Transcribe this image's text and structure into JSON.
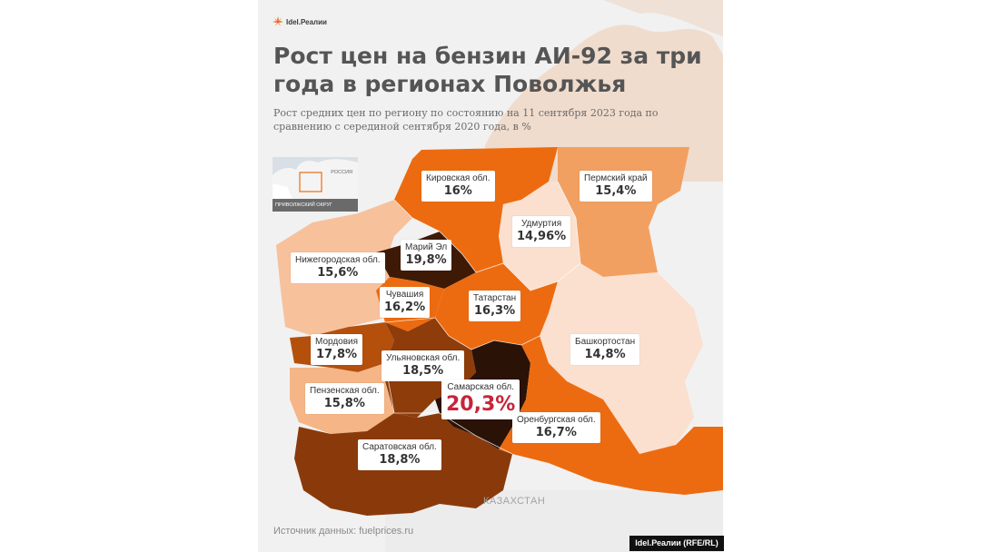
{
  "brand": {
    "logo_text": "Idel.Реалии"
  },
  "header": {
    "title": "Рост цен на бензин АИ-92 за три года в регионах Поволжья",
    "subtitle": "Рост средних цен по региону по состоянию на 11 сентября 2023 года по сравнению с серединой сентября 2020 года, в %"
  },
  "inset": {
    "country_label": "РОССИЯ",
    "caption": "ПРИВОЛЖСКИЙ ОКРУГ"
  },
  "map_labels": {
    "kazakhstan": "КАЗАХСТАН"
  },
  "regions": [
    {
      "name": "Кировская обл.",
      "value": "16%",
      "color": "#ed6b10"
    },
    {
      "name": "Пермский край",
      "value": "15,4%",
      "color": "#f2a061"
    },
    {
      "name": "Удмуртия",
      "value": "14,96%",
      "color": "#fbe0cf"
    },
    {
      "name": "Марий Эл",
      "value": "19,8%",
      "color": "#3e1a06"
    },
    {
      "name": "Нижегородская обл.",
      "value": "15,6%",
      "color": "#f7c19c"
    },
    {
      "name": "Чувашия",
      "value": "16,2%",
      "color": "#ed6b10"
    },
    {
      "name": "Татарстан",
      "value": "16,3%",
      "color": "#ed6b10"
    },
    {
      "name": "Башкортостан",
      "value": "14,8%",
      "color": "#fbe0cf"
    },
    {
      "name": "Мордовия",
      "value": "17,8%",
      "color": "#b54f0c"
    },
    {
      "name": "Ульяновская обл.",
      "value": "18,5%",
      "color": "#8e3c0a"
    },
    {
      "name": "Пензенская обл.",
      "value": "15,8%",
      "color": "#f5b586"
    },
    {
      "name": "Самарская обл.",
      "value": "20,3%",
      "color": "#2a1206"
    },
    {
      "name": "Оренбургская обл.",
      "value": "16,7%",
      "color": "#ed6b10"
    },
    {
      "name": "Саратовская обл.",
      "value": "18,8%",
      "color": "#8a3a0a"
    }
  ],
  "footer": {
    "source": "Источник данных: fuelprices.ru",
    "credit": "Idel.Реалии (RFE/RL)"
  }
}
